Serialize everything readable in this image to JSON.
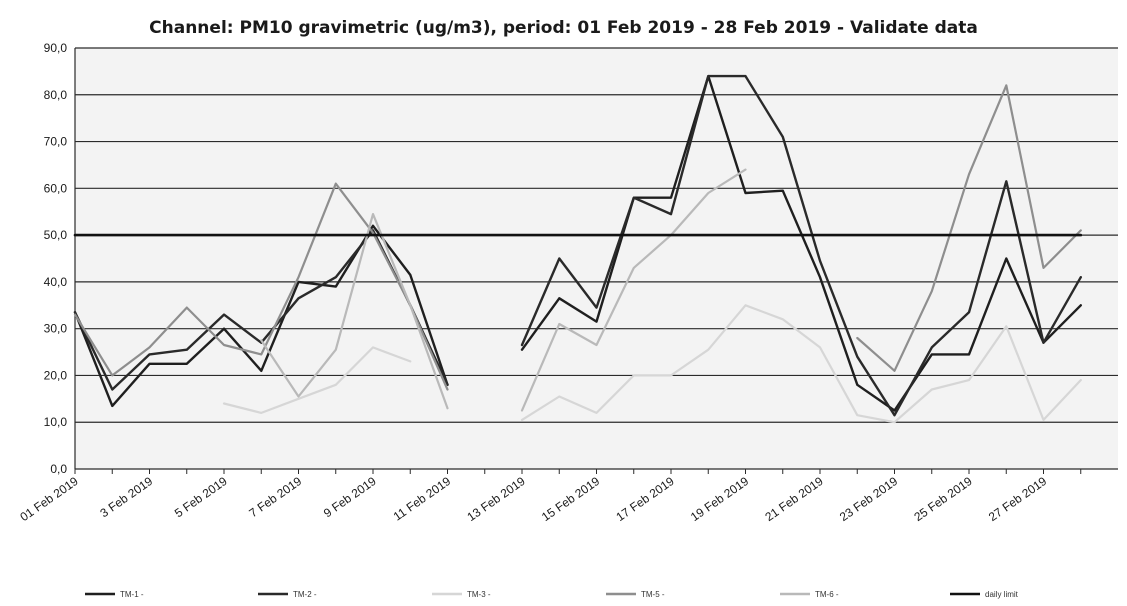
{
  "chart_data": {
    "type": "line",
    "title": "Channel: PM10 gravimetric (ug/m3), period: 01 Feb 2019 - 28 Feb 2019 - Validate data",
    "xlabel": "",
    "ylabel": "",
    "ylim": [
      0,
      90
    ],
    "yticks": [
      "0,0",
      "10,0",
      "20,0",
      "30,0",
      "40,0",
      "50,0",
      "60,0",
      "70,0",
      "80,0",
      "90,0"
    ],
    "x": [
      "01 Feb 2019",
      "02 Feb 2019",
      "03 Feb 2019",
      "04 Feb 2019",
      "05 Feb 2019",
      "06 Feb 2019",
      "07 Feb 2019",
      "08 Feb 2019",
      "09 Feb 2019",
      "10 Feb 2019",
      "11 Feb 2019",
      "12 Feb 2019",
      "13 Feb 2019",
      "14 Feb 2019",
      "15 Feb 2019",
      "16 Feb 2019",
      "17 Feb 2019",
      "18 Feb 2019",
      "19 Feb 2019",
      "20 Feb 2019",
      "21 Feb 2019",
      "22 Feb 2019",
      "23 Feb 2019",
      "24 Feb 2019",
      "25 Feb 2019",
      "26 Feb 2019",
      "27 Feb 2019",
      "28 Feb 2019"
    ],
    "xtick_labels": [
      "01 Feb 2019",
      "3 Feb 2019",
      "5 Feb 2019",
      "7 Feb 2019",
      "9 Feb 2019",
      "11 Feb 2019",
      "13 Feb 2019",
      "15 Feb 2019",
      "17 Feb 2019",
      "19 Feb 2019",
      "21 Feb 2019",
      "23 Feb 2019",
      "25 Feb 2019",
      "27 Feb 2019"
    ],
    "grid": true,
    "legend_position": "bottom",
    "series": [
      {
        "name": "TM-1 -",
        "color": "#1f1f1f",
        "values": [
          33.5,
          13.5,
          22.5,
          22.5,
          30,
          21,
          40,
          39,
          52,
          41.5,
          18,
          null,
          25.5,
          36.5,
          31.5,
          58,
          58,
          84,
          59,
          59.5,
          41,
          18,
          12.5,
          24.5,
          24.5,
          45,
          27,
          35
        ]
      },
      {
        "name": "TM-2 -",
        "color": "#2a2a2a",
        "values": [
          33.5,
          17,
          24.5,
          25.5,
          33,
          27,
          36.5,
          41,
          51,
          35,
          18,
          null,
          26.5,
          45,
          34.5,
          58,
          54.5,
          84,
          84,
          71,
          44.5,
          24,
          11.5,
          26,
          33.5,
          61.5,
          27,
          41
        ]
      },
      {
        "name": "TM-3 -",
        "color": "#d6d6d6",
        "values": [
          null,
          null,
          null,
          null,
          14,
          12,
          15,
          18,
          26,
          23,
          null,
          null,
          10.5,
          15.5,
          12,
          20,
          20,
          25.5,
          35,
          32,
          26,
          11.5,
          10,
          17,
          19,
          30.5,
          10.5,
          19
        ]
      },
      {
        "name": "TM-5 -",
        "color": "#8e8e8e",
        "values": [
          33,
          20,
          26,
          34.5,
          26.5,
          24.5,
          41,
          61,
          50.5,
          35,
          17,
          null,
          null,
          null,
          null,
          null,
          null,
          null,
          null,
          null,
          null,
          28,
          21,
          38,
          63,
          82,
          43,
          51
        ]
      },
      {
        "name": "TM-6 -",
        "color": "#b9b9b9",
        "values": [
          null,
          null,
          null,
          null,
          null,
          27.5,
          15.5,
          25.5,
          54.5,
          35,
          13,
          null,
          12.5,
          31,
          26.5,
          43,
          50,
          59,
          64,
          null,
          null,
          null,
          null,
          null,
          null,
          null,
          null,
          null
        ]
      },
      {
        "name": "daily limit",
        "color": "#111111",
        "values": [
          50,
          50,
          50,
          50,
          50,
          50,
          50,
          50,
          50,
          50,
          50,
          50,
          50,
          50,
          50,
          50,
          50,
          50,
          50,
          50,
          50,
          50,
          50,
          50,
          50,
          50,
          50,
          50
        ]
      }
    ]
  }
}
